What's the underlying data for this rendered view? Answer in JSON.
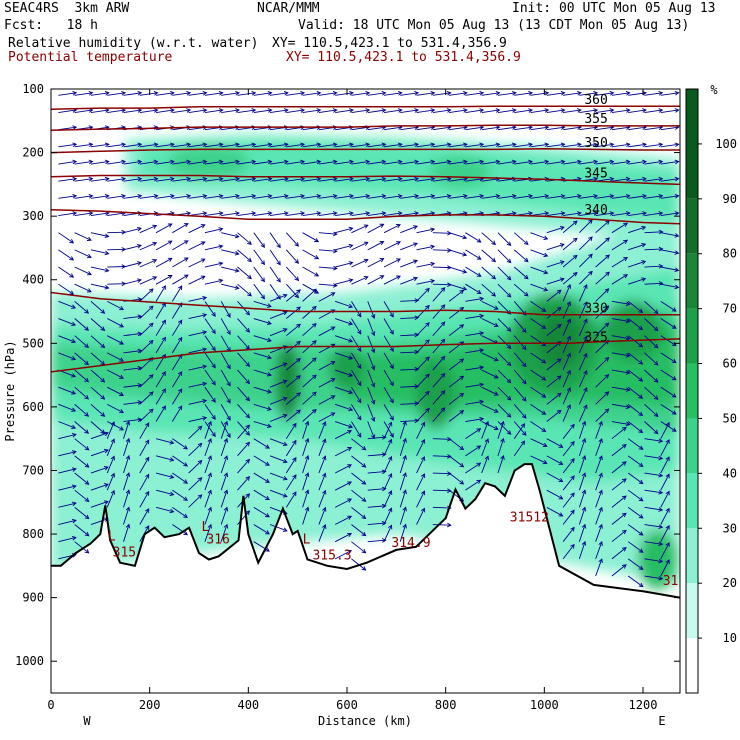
{
  "header": {
    "model": "SEAC4RS  3km ARW",
    "center": "NCAR/MMM",
    "init": "Init: 00 UTC Mon 05 Aug 13",
    "fcst": "Fcst:   18 h",
    "valid": "Valid: 18 UTC Mon 05 Aug 13 (13 CDT Mon 05 Aug 13)",
    "field1": "Relative humidity (w.r.t. water)",
    "xy1": "XY= 110.5,423.1 to 531.4,356.9",
    "field2": "Potential temperature",
    "xy2": "XY= 110.5,423.1 to 531.4,356.9"
  },
  "colors": {
    "theta": "#8b0000",
    "wind": "#00008b",
    "terrain": "#000000",
    "rh_levels": [
      "#ffffff",
      "#c8faf0",
      "#8cf0d2",
      "#5ae6b4",
      "#3cd28c",
      "#28be64",
      "#1ea04b",
      "#198737",
      "#126e28",
      "#0a5a1e"
    ]
  },
  "chart_data": {
    "type": "heatmap",
    "title": "",
    "xlabel": "Distance (km)",
    "ylabel": "Pressure (hPa)",
    "xlim": [
      0,
      1275
    ],
    "ylim": [
      1050,
      100
    ],
    "x_ticks": [
      0,
      200,
      400,
      600,
      800,
      1000,
      1200
    ],
    "y_ticks": [
      100,
      200,
      300,
      400,
      500,
      600,
      700,
      800,
      900,
      1000
    ],
    "x_end_labels": {
      "left": "W",
      "right": "E"
    },
    "colorbar": {
      "unit": "%",
      "levels": [
        0,
        10,
        20,
        30,
        40,
        50,
        60,
        70,
        80,
        90,
        100
      ],
      "labels": [
        10,
        20,
        30,
        40,
        50,
        60,
        70,
        80,
        90,
        100
      ]
    },
    "theta_contours": [
      {
        "value": 325,
        "label": "325",
        "points": [
          [
            0,
            545
          ],
          [
            100,
            535
          ],
          [
            200,
            525
          ],
          [
            300,
            515
          ],
          [
            400,
            510
          ],
          [
            500,
            505
          ],
          [
            600,
            505
          ],
          [
            700,
            505
          ],
          [
            800,
            502
          ],
          [
            900,
            500
          ],
          [
            1000,
            500
          ],
          [
            1050,
            500
          ],
          [
            1100,
            498
          ],
          [
            1200,
            495
          ],
          [
            1275,
            493
          ]
        ]
      },
      {
        "value": 330,
        "label": "330",
        "points": [
          [
            0,
            420
          ],
          [
            100,
            430
          ],
          [
            200,
            435
          ],
          [
            300,
            440
          ],
          [
            400,
            445
          ],
          [
            500,
            450
          ],
          [
            600,
            450
          ],
          [
            700,
            450
          ],
          [
            800,
            448
          ],
          [
            900,
            450
          ],
          [
            1000,
            455
          ],
          [
            1050,
            455
          ],
          [
            1100,
            455
          ],
          [
            1200,
            455
          ],
          [
            1275,
            455
          ]
        ]
      },
      {
        "value": 340,
        "label": "340",
        "points": [
          [
            0,
            290
          ],
          [
            100,
            292
          ],
          [
            200,
            296
          ],
          [
            300,
            300
          ],
          [
            400,
            305
          ],
          [
            500,
            305
          ],
          [
            600,
            305
          ],
          [
            700,
            300
          ],
          [
            800,
            298
          ],
          [
            900,
            298
          ],
          [
            1000,
            300
          ],
          [
            1100,
            305
          ],
          [
            1200,
            310
          ],
          [
            1275,
            312
          ]
        ]
      },
      {
        "value": 345,
        "label": "345",
        "points": [
          [
            0,
            238
          ],
          [
            100,
            236
          ],
          [
            200,
            236
          ],
          [
            300,
            236
          ],
          [
            400,
            238
          ],
          [
            500,
            238
          ],
          [
            600,
            238
          ],
          [
            700,
            237
          ],
          [
            800,
            238
          ],
          [
            900,
            240
          ],
          [
            1000,
            242
          ],
          [
            1100,
            245
          ],
          [
            1200,
            248
          ],
          [
            1275,
            250
          ]
        ]
      },
      {
        "value": 350,
        "label": "350",
        "points": [
          [
            0,
            200
          ],
          [
            100,
            198
          ],
          [
            200,
            196
          ],
          [
            300,
            195
          ],
          [
            400,
            195
          ],
          [
            500,
            195
          ],
          [
            600,
            195
          ],
          [
            700,
            195
          ],
          [
            800,
            195
          ],
          [
            900,
            195
          ],
          [
            1000,
            194
          ],
          [
            1100,
            195
          ],
          [
            1200,
            196
          ],
          [
            1275,
            196
          ]
        ]
      },
      {
        "value": 355,
        "label": "355",
        "points": [
          [
            0,
            165
          ],
          [
            100,
            163
          ],
          [
            200,
            162
          ],
          [
            300,
            160
          ],
          [
            400,
            160
          ],
          [
            500,
            160
          ],
          [
            600,
            160
          ],
          [
            700,
            158
          ],
          [
            800,
            158
          ],
          [
            900,
            157
          ],
          [
            1000,
            157
          ],
          [
            1100,
            158
          ],
          [
            1200,
            158
          ],
          [
            1275,
            158
          ]
        ]
      },
      {
        "value": 360,
        "label": "360",
        "points": [
          [
            0,
            132
          ],
          [
            100,
            130
          ],
          [
            200,
            130
          ],
          [
            300,
            128
          ],
          [
            400,
            128
          ],
          [
            500,
            128
          ],
          [
            600,
            128
          ],
          [
            700,
            128
          ],
          [
            800,
            128
          ],
          [
            900,
            127
          ],
          [
            1000,
            127
          ],
          [
            1100,
            127
          ],
          [
            1200,
            127
          ],
          [
            1275,
            127
          ]
        ]
      }
    ],
    "terrain": [
      [
        0,
        850
      ],
      [
        20,
        850
      ],
      [
        50,
        830
      ],
      [
        80,
        815
      ],
      [
        100,
        800
      ],
      [
        110,
        755
      ],
      [
        120,
        810
      ],
      [
        140,
        845
      ],
      [
        170,
        850
      ],
      [
        190,
        800
      ],
      [
        210,
        790
      ],
      [
        230,
        805
      ],
      [
        260,
        800
      ],
      [
        280,
        790
      ],
      [
        300,
        830
      ],
      [
        320,
        840
      ],
      [
        340,
        835
      ],
      [
        380,
        810
      ],
      [
        390,
        740
      ],
      [
        400,
        800
      ],
      [
        420,
        845
      ],
      [
        450,
        800
      ],
      [
        470,
        760
      ],
      [
        480,
        780
      ],
      [
        490,
        800
      ],
      [
        500,
        795
      ],
      [
        520,
        840
      ],
      [
        560,
        850
      ],
      [
        600,
        855
      ],
      [
        640,
        845
      ],
      [
        700,
        825
      ],
      [
        740,
        820
      ],
      [
        780,
        790
      ],
      [
        800,
        775
      ],
      [
        820,
        730
      ],
      [
        840,
        760
      ],
      [
        860,
        745
      ],
      [
        880,
        720
      ],
      [
        900,
        725
      ],
      [
        920,
        740
      ],
      [
        940,
        700
      ],
      [
        960,
        690
      ],
      [
        975,
        690
      ],
      [
        990,
        730
      ],
      [
        1010,
        790
      ],
      [
        1030,
        850
      ],
      [
        1100,
        880
      ],
      [
        1200,
        890
      ],
      [
        1275,
        900
      ]
    ],
    "low_labels": [
      {
        "x": 115,
        "p": 810,
        "text": "L"
      },
      {
        "x": 305,
        "p": 795,
        "text": "L"
      },
      {
        "x": 510,
        "p": 815,
        "text": "L"
      }
    ],
    "near_surface_labels": [
      {
        "x": 125,
        "p": 835,
        "text": "315"
      },
      {
        "x": 315,
        "p": 815,
        "text": "316"
      },
      {
        "x": 530,
        "p": 840,
        "text": "315.3"
      },
      {
        "x": 690,
        "p": 820,
        "text": "314.9"
      },
      {
        "x": 930,
        "p": 780,
        "text": "31512"
      },
      {
        "x": 1240,
        "p": 880,
        "text": "31"
      }
    ]
  }
}
